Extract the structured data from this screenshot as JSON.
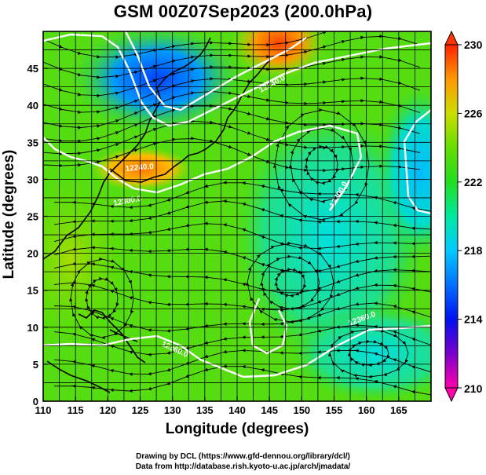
{
  "title": "GSM 00Z07Sep2023 (200.0hPa)",
  "x_axis": {
    "label": "Longitude (degrees)",
    "ticks": [
      "110",
      "115",
      "120",
      "125",
      "130",
      "135",
      "140",
      "145",
      "150",
      "155",
      "160",
      "165"
    ],
    "range": [
      110,
      170
    ]
  },
  "y_axis": {
    "label": "Latitude  (degrees)",
    "ticks": [
      "0",
      "5",
      "10",
      "15",
      "20",
      "25",
      "30",
      "35",
      "40",
      "45"
    ],
    "range": [
      0,
      50
    ]
  },
  "colorbar": {
    "ticks": [
      "230",
      "226",
      "222",
      "218",
      "214",
      "210"
    ],
    "range": [
      210,
      230
    ],
    "colors": [
      "#ff00aa",
      "#6600cc",
      "#0000ff",
      "#0066ff",
      "#00aaff",
      "#00e5ff",
      "#00ee66",
      "#22dd00",
      "#77dd00",
      "#ccdd00",
      "#ffcc00",
      "#ff8800",
      "#ff3300"
    ]
  },
  "contour_labels": [
    "12240.0",
    "12240.0",
    "12300.0",
    "12300.0",
    "12360.0",
    "12360.0"
  ],
  "credits": {
    "line1": "Drawing by DCL (https://www.gfd-dennou.org/library/dcl/)",
    "line2": "Data from http://database.rish.kyoto-u.ac.jp/arch/jmadata/"
  }
}
